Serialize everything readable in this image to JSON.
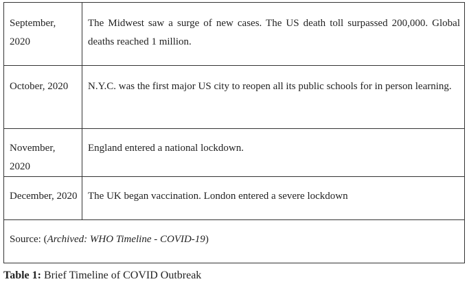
{
  "table": {
    "rows": [
      {
        "date": "September, 2020",
        "event": "The Midwest saw a surge of new cases. The US death toll surpassed 200,000. Global deaths reached 1 million."
      },
      {
        "date": "October, 2020",
        "event": "N.Y.C. was the first major US city to reopen all its public schools for in person learning."
      },
      {
        "date": "November, 2020",
        "event": "England entered a national lockdown."
      },
      {
        "date": "December, 2020",
        "event": "The UK began vaccination. London entered a severe lockdown"
      }
    ],
    "source": {
      "prefix": "Source: (",
      "italic": "Archived: WHO Timeline - COVID-19",
      "suffix": ")"
    }
  },
  "caption": {
    "label": "Table 1:",
    "text": " Brief Timeline of COVID Outbreak"
  }
}
